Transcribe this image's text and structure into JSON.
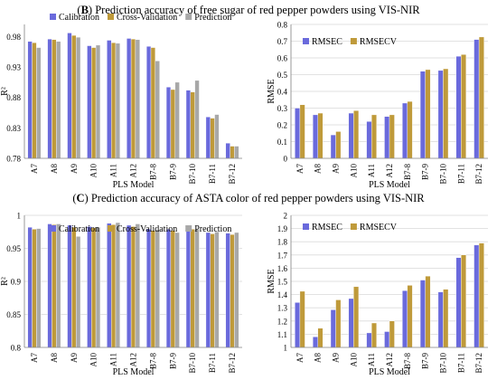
{
  "sections": [
    {
      "label": "B",
      "title": "Prediction accuracy of free sugar of red pepper powders using VIS-NIR"
    },
    {
      "label": "C",
      "title": "Prediction accuracy of ASTA color of red pepper powders using VIS-NIR"
    }
  ],
  "colors": {
    "calibration": "#6a6adc",
    "cross_validation": "#bf9a3a",
    "prediction": "#a8a8a8",
    "rmsec": "#6a6adc",
    "rmsecv": "#bf9a3a"
  },
  "chart_data": [
    {
      "id": "b-r2",
      "type": "bar",
      "xlabel": "PLS Model",
      "ylabel": "R²",
      "ylim": [
        0.78,
        1.0
      ],
      "yticks": [
        "0.78",
        "0.83",
        "0.88",
        "0.93",
        "0.98"
      ],
      "ytick_values": [
        0.78,
        0.83,
        0.88,
        0.93,
        0.98
      ],
      "grid": false,
      "legend": "top",
      "categories": [
        "A7",
        "A8",
        "A9",
        "A10",
        "A11",
        "A12",
        "B7-8",
        "B7-9",
        "B7-10",
        "B7-11",
        "B7-12"
      ],
      "series": [
        {
          "name": "Calibration",
          "color_key": "calibration",
          "values": [
            0.972,
            0.976,
            0.986,
            0.965,
            0.974,
            0.977,
            0.964,
            0.897,
            0.892,
            0.848,
            0.805
          ]
        },
        {
          "name": "Cross-Validation",
          "color_key": "cross_validation",
          "values": [
            0.97,
            0.975,
            0.982,
            0.962,
            0.97,
            0.976,
            0.962,
            0.893,
            0.889,
            0.846,
            0.8
          ]
        },
        {
          "name": "Prediction",
          "color_key": "prediction",
          "values": [
            0.962,
            0.972,
            0.979,
            0.966,
            0.969,
            0.975,
            0.94,
            0.905,
            0.908,
            0.852,
            0.8
          ]
        }
      ]
    },
    {
      "id": "b-rmse",
      "type": "bar",
      "xlabel": "PLS Model",
      "ylabel": "RMSE",
      "ylim": [
        0,
        0.8
      ],
      "yticks": [
        "0",
        "0.1",
        "0.2",
        "0.3",
        "0.4",
        "0.5",
        "0.6",
        "0.7",
        "0.8"
      ],
      "ytick_values": [
        0,
        0.1,
        0.2,
        0.3,
        0.4,
        0.5,
        0.6,
        0.7,
        0.8
      ],
      "grid": true,
      "legend": "top-left",
      "categories": [
        "A7",
        "A8",
        "A9",
        "A10",
        "A11",
        "A12",
        "B7-8",
        "B7-9",
        "B7-10",
        "B7-11",
        "B7-12"
      ],
      "series": [
        {
          "name": "RMSEC",
          "color_key": "rmsec",
          "values": [
            0.3,
            0.26,
            0.14,
            0.27,
            0.22,
            0.25,
            0.33,
            0.52,
            0.525,
            0.61,
            0.71
          ]
        },
        {
          "name": "RMSECV",
          "color_key": "rmsecv",
          "values": [
            0.32,
            0.27,
            0.16,
            0.285,
            0.26,
            0.26,
            0.34,
            0.53,
            0.535,
            0.62,
            0.725
          ]
        }
      ]
    },
    {
      "id": "c-r2",
      "type": "bar",
      "xlabel": "PLS Model",
      "ylabel": "R²",
      "ylim": [
        0.8,
        1.0
      ],
      "yticks": [
        "0.8",
        "0.85",
        "0.9",
        "0.95",
        "1"
      ],
      "ytick_values": [
        0.8,
        0.85,
        0.9,
        0.95,
        1.0
      ],
      "grid": true,
      "legend": "top",
      "categories": [
        "A7",
        "A8",
        "A9",
        "A10",
        "A11",
        "A12",
        "B7-8",
        "B7-9",
        "B7-10",
        "B7-11",
        "B7-12"
      ],
      "series": [
        {
          "name": "Calibration",
          "color_key": "calibration",
          "values": [
            0.982,
            0.987,
            0.985,
            0.983,
            0.988,
            0.985,
            0.979,
            0.979,
            0.98,
            0.974,
            0.973
          ]
        },
        {
          "name": "Cross-Validation",
          "color_key": "cross_validation",
          "values": [
            0.979,
            0.986,
            0.982,
            0.981,
            0.986,
            0.983,
            0.977,
            0.977,
            0.979,
            0.972,
            0.971
          ]
        },
        {
          "name": "Prediction",
          "color_key": "prediction",
          "values": [
            0.98,
            0.987,
            0.968,
            0.982,
            0.989,
            0.987,
            0.978,
            0.974,
            0.979,
            0.975,
            0.974
          ]
        }
      ]
    },
    {
      "id": "c-rmse",
      "type": "bar",
      "xlabel": "PLS Model",
      "ylabel": "RMSE",
      "ylim": [
        1,
        2
      ],
      "yticks": [
        "1",
        "1.1",
        "1.2",
        "1.3",
        "1.4",
        "1.5",
        "1.6",
        "1.7",
        "1.8",
        "1.9",
        "2"
      ],
      "ytick_values": [
        1,
        1.1,
        1.2,
        1.3,
        1.4,
        1.5,
        1.6,
        1.7,
        1.8,
        1.9,
        2
      ],
      "grid": true,
      "legend": "top-left",
      "categories": [
        "A7",
        "A8",
        "A9",
        "A10",
        "A11",
        "A12",
        "B7-8",
        "B7-9",
        "B7-10",
        "B7-11",
        "B7-12"
      ],
      "series": [
        {
          "name": "RMSEC",
          "color_key": "rmsec",
          "values": [
            1.34,
            1.08,
            1.285,
            1.37,
            1.11,
            1.12,
            1.43,
            1.51,
            1.42,
            1.68,
            1.775
          ]
        },
        {
          "name": "RMSECV",
          "color_key": "rmsecv",
          "values": [
            1.425,
            1.145,
            1.36,
            1.46,
            1.185,
            1.2,
            1.47,
            1.54,
            1.44,
            1.7,
            1.79
          ]
        }
      ]
    }
  ]
}
